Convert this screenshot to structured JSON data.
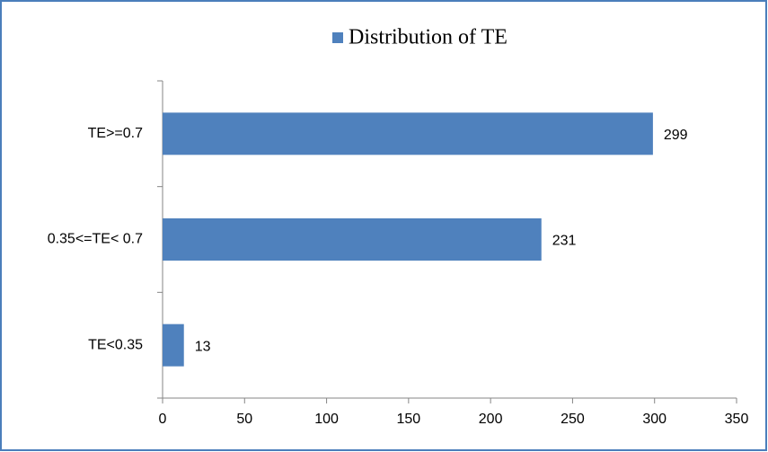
{
  "chart_data": {
    "type": "bar",
    "categories": [
      "TE>=0.7",
      "0.35<=TE< 0.7",
      "TE<0.35"
    ],
    "series": [
      {
        "name": "Distribution of TE",
        "color": "#4f81bd",
        "values": [
          299,
          231,
          13
        ]
      }
    ],
    "xlim": [
      0,
      350
    ],
    "xticks": [
      0,
      50,
      100,
      150,
      200,
      250,
      300,
      350
    ],
    "legend": "top",
    "grid": false
  }
}
